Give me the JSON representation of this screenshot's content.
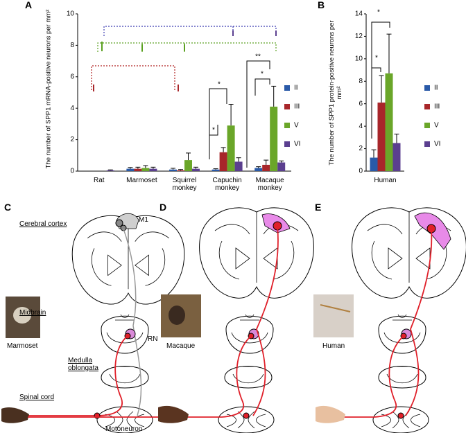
{
  "panels": [
    "A",
    "B",
    "C",
    "D",
    "E"
  ],
  "chart_data": [
    {
      "type": "bar",
      "ylabel": "The number of SPP1 mRNA-positive neurons per mm²",
      "categories": [
        "Rat",
        "Marmoset",
        "Squirrel monkey",
        "Capuchin monkey",
        "Macaque monkey"
      ],
      "series": [
        {
          "name": "II",
          "color": "#2a5aa8",
          "values": [
            0,
            0.15,
            0.1,
            0.1,
            0.2
          ],
          "errors": [
            0,
            0.08,
            0.08,
            0.05,
            0.08
          ]
        },
        {
          "name": "III",
          "color": "#a8262a",
          "values": [
            0,
            0.15,
            0.05,
            1.2,
            0.4
          ],
          "errors": [
            0,
            0.1,
            0.05,
            0.3,
            0.3
          ]
        },
        {
          "name": "V",
          "color": "#6aa629",
          "values": [
            0,
            0.2,
            0.7,
            2.9,
            4.1
          ],
          "errors": [
            0,
            0.15,
            0.45,
            1.35,
            1.3
          ]
        },
        {
          "name": "VI",
          "color": "#5b3f8f",
          "values": [
            0.05,
            0.15,
            0.15,
            0.6,
            0.55
          ],
          "errors": [
            0.03,
            0.1,
            0.1,
            0.25,
            0.1
          ]
        }
      ],
      "ylim": [
        0,
        10
      ],
      "yticks": [
        0,
        2,
        4,
        6,
        8,
        10
      ],
      "annotations": [
        "*",
        "*",
        "**",
        "*"
      ]
    },
    {
      "type": "bar",
      "ylabel": "The number of SPP1 protein-positive neurons per mm²",
      "categories": [
        "Human"
      ],
      "series": [
        {
          "name": "II",
          "color": "#2a5aa8",
          "values": [
            1.2
          ],
          "errors": [
            0.7
          ]
        },
        {
          "name": "III",
          "color": "#a8262a",
          "values": [
            6.1
          ],
          "errors": [
            2.4
          ]
        },
        {
          "name": "V",
          "color": "#6aa629",
          "values": [
            8.7
          ],
          "errors": [
            3.5
          ]
        },
        {
          "name": "VI",
          "color": "#5b3f8f",
          "values": [
            2.5
          ],
          "errors": [
            0.8
          ]
        }
      ],
      "ylim": [
        0,
        14
      ],
      "yticks": [
        0,
        2,
        4,
        6,
        8,
        10,
        12,
        14
      ],
      "annotations": [
        "*",
        "*"
      ]
    }
  ],
  "diagram": {
    "cortex": "Cerebral cortex",
    "m1": "M1",
    "midbrain": "Midbrain",
    "rn": "RN",
    "medulla": "Medulla oblongata",
    "spinal": "Spinal cord",
    "motoneuron": "Motoneuron",
    "species": [
      "Marmoset",
      "Macaque",
      "Human"
    ]
  }
}
